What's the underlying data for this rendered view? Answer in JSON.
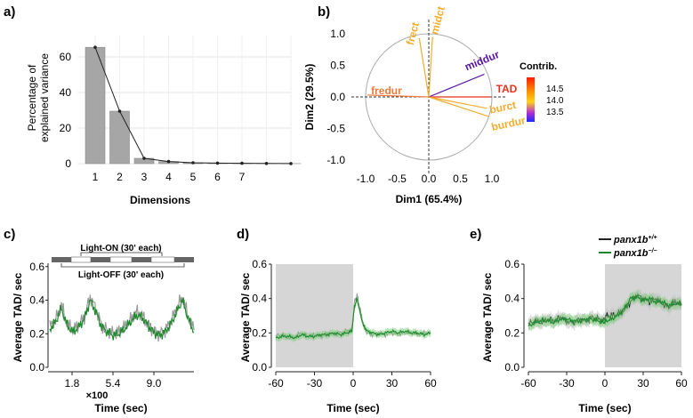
{
  "colors": {
    "bar_fill": "#a6a6a6",
    "line": "#222222",
    "green": "#1a8a2a",
    "green_band": "#7fcf7f",
    "gray_trace": "#9a9a9a",
    "shade": "#d6d6d6",
    "tad_red": "#e8321e",
    "fredur_orange": "#f07a3c",
    "yellow_orange": "#f2ad2c",
    "middur_purple": "#5a16a8",
    "biplot_line": "#3a56b0",
    "circle": "#aaaaaa"
  },
  "panel_labels": {
    "a": "a)",
    "b": "b)",
    "c": "c)",
    "d": "d)",
    "e": "e)"
  },
  "chart_data": [
    {
      "panel": "a",
      "type": "bar",
      "categories": [
        "1",
        "2",
        "3",
        "4",
        "5",
        "6",
        "7",
        "",
        ""
      ],
      "values": [
        65.4,
        29.5,
        3.0,
        1.2,
        0.5,
        0.3,
        0.2,
        0.1,
        0.05
      ],
      "xlabel": "Dimensions",
      "ylabel": "Percentage of explained variance",
      "ylabel_lines": [
        "Percentage of",
        "explained variance"
      ],
      "yticks": [
        "0",
        "20",
        "40",
        "60"
      ],
      "ylim": [
        0,
        72
      ],
      "grid": true
    },
    {
      "panel": "b",
      "type": "scatter",
      "subtype": "pca-variable-biplot",
      "xlabel": "Dim1 (65.4%)",
      "ylabel": "Dim2 (29.5%)",
      "xticks": [
        "-1.0",
        "-0.5",
        "0.0",
        "0.5",
        "1.0"
      ],
      "yticks": [
        "-1.0",
        "-0.5",
        "0.0",
        "0.5",
        "1.0"
      ],
      "xlim": [
        -1.1,
        1.1
      ],
      "ylim": [
        -1.1,
        1.1
      ],
      "variables": [
        {
          "name": "TAD",
          "x": 0.98,
          "y": 0.0,
          "color": "#e8321e"
        },
        {
          "name": "fredur",
          "x": -0.97,
          "y": 0.03,
          "color": "#f07a3c"
        },
        {
          "name": "frect",
          "x": -0.15,
          "y": 0.93,
          "color": "#f2ad2c"
        },
        {
          "name": "midct",
          "x": 0.06,
          "y": 0.95,
          "color": "#f2ad2c"
        },
        {
          "name": "middur",
          "x": 0.88,
          "y": 0.36,
          "color": "#5a16a8"
        },
        {
          "name": "burct",
          "x": 0.92,
          "y": -0.18,
          "color": "#f2ad2c"
        },
        {
          "name": "burdur",
          "x": 0.95,
          "y": -0.31,
          "color": "#f2ad2c"
        }
      ],
      "legend": {
        "title": "Contrib.",
        "ticks": [
          "14.5",
          "14.0",
          "13.5"
        ]
      }
    },
    {
      "panel": "c",
      "type": "line",
      "xlabel": "Time (sec)",
      "x_multiplier": "×100",
      "ylabel": "Average TAD/ sec",
      "xticks": [
        "1.8",
        "5.4",
        "9.0"
      ],
      "yticks": [
        "0.0",
        "0.2",
        "0.4",
        "0.6"
      ],
      "ylim": [
        0,
        0.62
      ],
      "annotations": [
        "Light-ON (30' each)",
        "Light-OFF (30' each)"
      ],
      "series": [
        {
          "values": [
            0.24,
            0.28,
            0.37,
            0.26,
            0.22,
            0.25,
            0.3,
            0.42,
            0.35,
            0.25,
            0.22,
            0.2,
            0.21,
            0.24,
            0.28,
            0.33,
            0.31,
            0.26,
            0.22,
            0.2,
            0.22,
            0.27,
            0.35,
            0.42,
            0.3,
            0.22
          ]
        },
        {
          "values": [
            0.23,
            0.27,
            0.35,
            0.25,
            0.21,
            0.24,
            0.29,
            0.4,
            0.33,
            0.24,
            0.21,
            0.19,
            0.2,
            0.23,
            0.27,
            0.31,
            0.3,
            0.25,
            0.21,
            0.19,
            0.21,
            0.26,
            0.33,
            0.4,
            0.29,
            0.21
          ]
        }
      ]
    },
    {
      "panel": "d",
      "type": "line",
      "xlabel": "Time (sec)",
      "ylabel": "Average TAD/ sec",
      "xticks": [
        "-60",
        "-30",
        "0",
        "30",
        "60"
      ],
      "yticks": [
        "0.0",
        "0.2",
        "0.4",
        "0.6"
      ],
      "xlim": [
        -60,
        60
      ],
      "ylim": [
        0,
        0.6
      ],
      "shaded_x": [
        -60,
        0
      ],
      "x": [
        -60,
        -55,
        -50,
        -45,
        -40,
        -35,
        -30,
        -25,
        -20,
        -15,
        -10,
        -5,
        -1,
        1,
        3,
        5,
        8,
        11,
        15,
        20,
        25,
        30,
        35,
        40,
        45,
        50,
        55,
        60
      ],
      "series": [
        {
          "values": [
            0.18,
            0.19,
            0.17,
            0.18,
            0.2,
            0.18,
            0.19,
            0.18,
            0.2,
            0.19,
            0.2,
            0.21,
            0.22,
            0.38,
            0.42,
            0.35,
            0.25,
            0.2,
            0.19,
            0.2,
            0.19,
            0.2,
            0.19,
            0.2,
            0.2,
            0.19,
            0.2,
            0.2
          ]
        },
        {
          "values": [
            0.17,
            0.18,
            0.18,
            0.17,
            0.19,
            0.18,
            0.18,
            0.19,
            0.19,
            0.2,
            0.19,
            0.2,
            0.21,
            0.35,
            0.4,
            0.33,
            0.24,
            0.21,
            0.2,
            0.19,
            0.2,
            0.21,
            0.2,
            0.21,
            0.2,
            0.2,
            0.19,
            0.2
          ]
        }
      ]
    },
    {
      "panel": "e",
      "type": "line",
      "xlabel": "Time (sec)",
      "ylabel": "Average TAD/ sec",
      "xticks": [
        "-60",
        "-30",
        "0",
        "30",
        "60"
      ],
      "yticks": [
        "0.0",
        "0.2",
        "0.4",
        "0.6"
      ],
      "xlim": [
        -60,
        60
      ],
      "ylim": [
        0,
        0.6
      ],
      "shaded_x": [
        0,
        60
      ],
      "x": [
        -60,
        -55,
        -50,
        -45,
        -40,
        -35,
        -30,
        -25,
        -20,
        -15,
        -10,
        -5,
        -1,
        1,
        5,
        10,
        15,
        20,
        25,
        30,
        35,
        40,
        45,
        50,
        55,
        60
      ],
      "series": [
        {
          "name": "panx1b+/+",
          "name_base": "panx1b",
          "name_sup": "+/+",
          "values": [
            0.25,
            0.27,
            0.26,
            0.28,
            0.27,
            0.29,
            0.27,
            0.26,
            0.28,
            0.27,
            0.29,
            0.28,
            0.27,
            0.3,
            0.3,
            0.31,
            0.33,
            0.38,
            0.42,
            0.4,
            0.38,
            0.4,
            0.37,
            0.35,
            0.38,
            0.36
          ]
        },
        {
          "name": "panx1b−/−",
          "name_base": "panx1b",
          "name_sup": "−/−",
          "values": [
            0.24,
            0.26,
            0.27,
            0.27,
            0.26,
            0.28,
            0.28,
            0.27,
            0.27,
            0.28,
            0.28,
            0.27,
            0.26,
            0.27,
            0.28,
            0.3,
            0.34,
            0.4,
            0.41,
            0.39,
            0.4,
            0.38,
            0.38,
            0.36,
            0.37,
            0.37
          ]
        }
      ]
    }
  ]
}
